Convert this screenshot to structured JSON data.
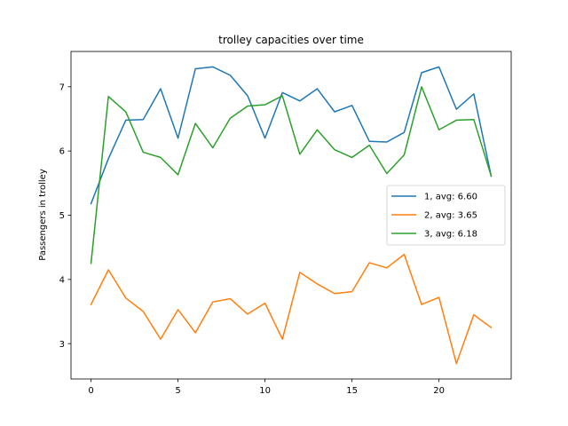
{
  "chart_data": {
    "type": "line",
    "title": "trolley capacities over time",
    "xlabel": "",
    "ylabel": "Passengers in trolley",
    "xlim": [
      -1.15,
      24.15
    ],
    "ylim": [
      2.45,
      7.55
    ],
    "xticks": [
      0,
      5,
      10,
      15,
      20
    ],
    "yticks": [
      3,
      4,
      5,
      6,
      7
    ],
    "grid": false,
    "legend_position": "center-right",
    "x": [
      0,
      1,
      2,
      3,
      4,
      5,
      6,
      7,
      8,
      9,
      10,
      11,
      12,
      13,
      14,
      15,
      16,
      17,
      18,
      19,
      20,
      21,
      22,
      23
    ],
    "series": [
      {
        "name": "1, avg: 6.60",
        "color": "#1f77b4",
        "values": [
          5.18,
          5.88,
          6.48,
          6.49,
          6.97,
          6.2,
          7.28,
          7.31,
          7.18,
          6.86,
          6.2,
          6.91,
          6.78,
          6.97,
          6.61,
          6.71,
          6.15,
          6.14,
          6.29,
          7.22,
          7.31,
          6.65,
          6.89,
          5.61
        ]
      },
      {
        "name": "2, avg: 3.65",
        "color": "#ff7f0e",
        "values": [
          3.61,
          4.15,
          3.71,
          3.5,
          3.07,
          3.53,
          3.17,
          3.65,
          3.7,
          3.46,
          3.63,
          3.07,
          4.11,
          3.93,
          3.78,
          3.81,
          4.26,
          4.18,
          4.39,
          3.61,
          3.72,
          2.69,
          3.45,
          3.25
        ]
      },
      {
        "name": "3, avg: 6.18",
        "color": "#2ca02c",
        "values": [
          4.25,
          6.85,
          6.61,
          5.98,
          5.9,
          5.63,
          6.43,
          6.05,
          6.51,
          6.7,
          6.72,
          6.86,
          5.95,
          6.33,
          6.02,
          5.9,
          6.09,
          5.65,
          5.94,
          7.0,
          6.33,
          6.48,
          6.49,
          5.61
        ]
      }
    ]
  }
}
